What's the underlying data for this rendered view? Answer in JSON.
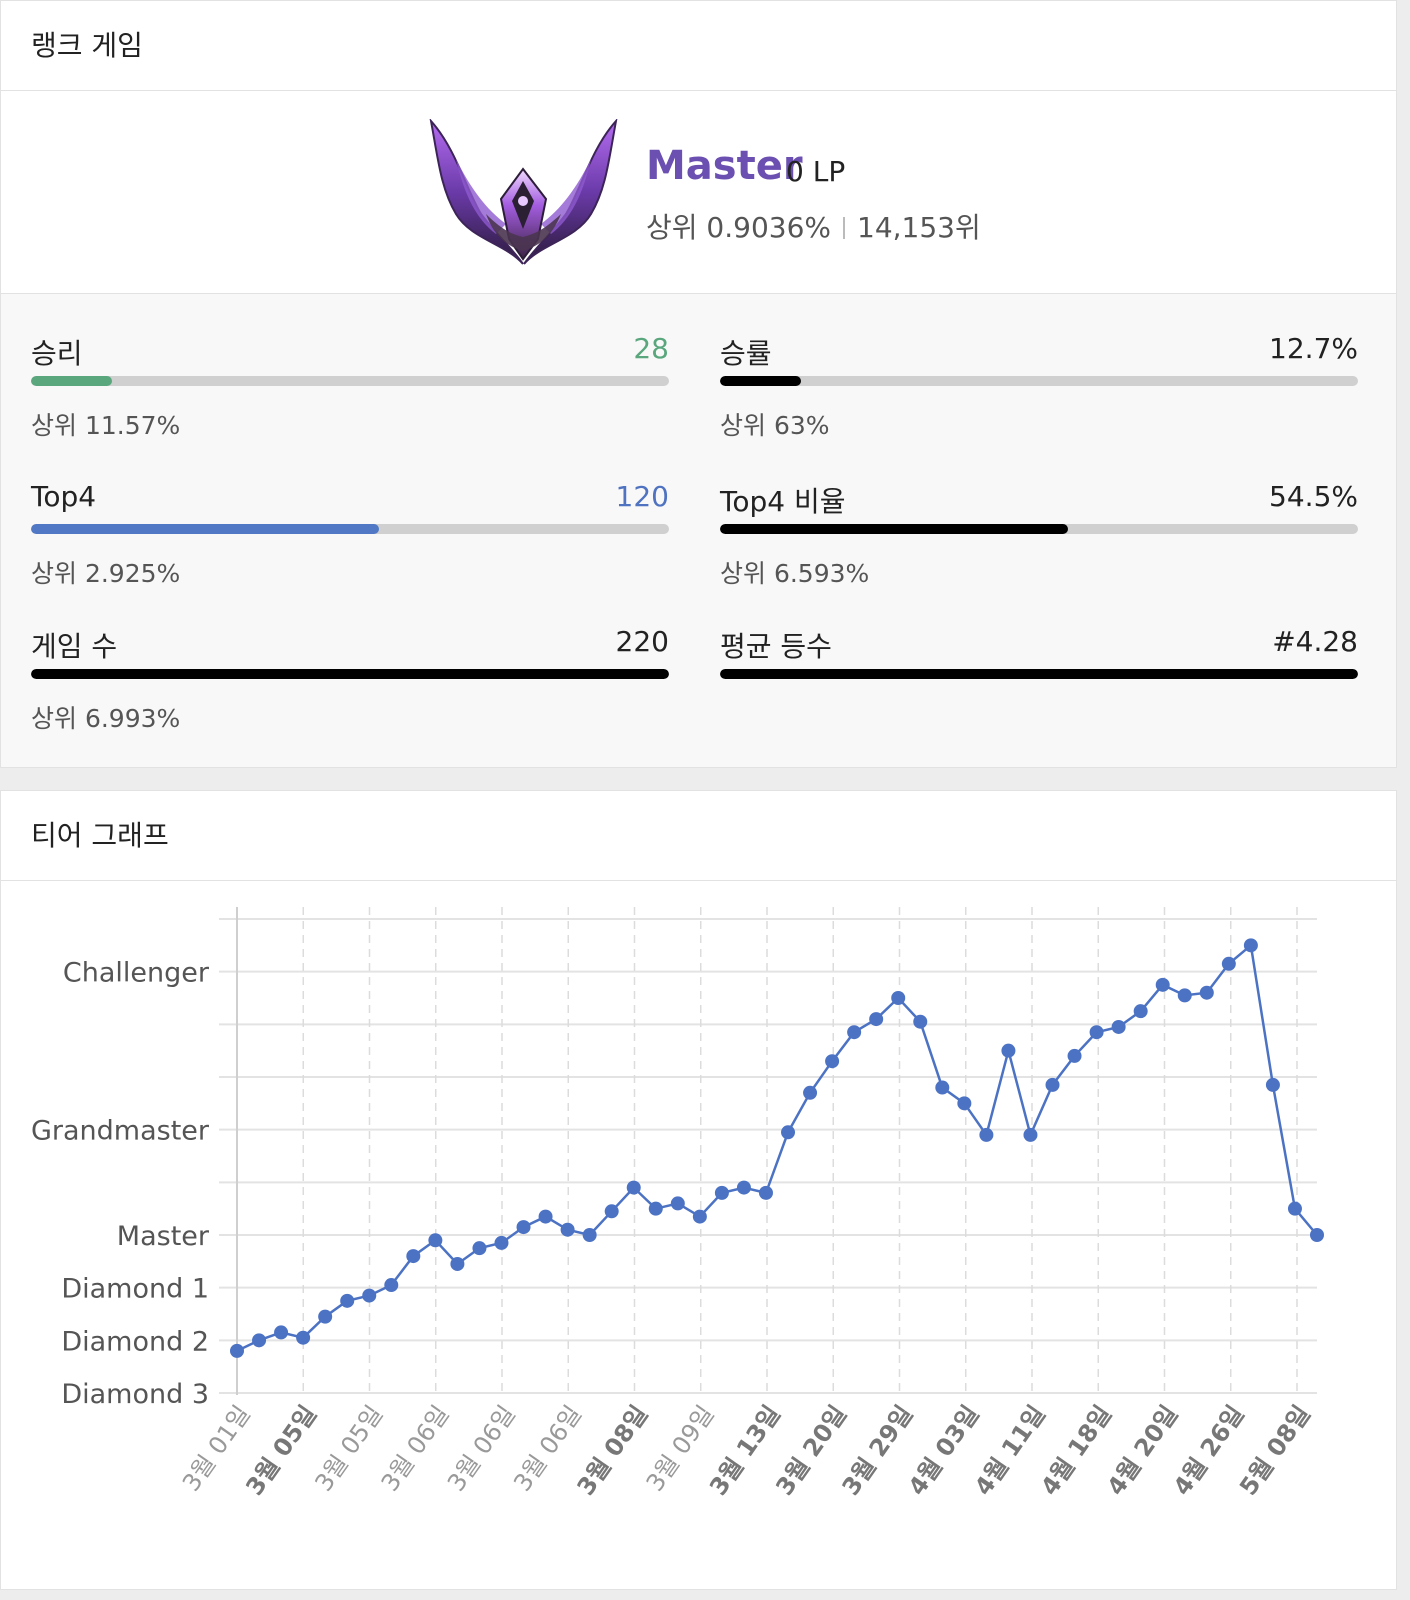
{
  "rank": {
    "header": "랭크 게임",
    "tier": "Master",
    "lp": "0 LP",
    "top_percent": "상위 0.9036%",
    "position": "14,153위"
  },
  "stats": [
    {
      "label": "승리",
      "value": "28",
      "fill_fraction": 0.127,
      "rank": "상위 11.57%",
      "color": "#5aa77e",
      "value_color": "#5aa77e"
    },
    {
      "label": "승률",
      "value": "12.7%",
      "fill_fraction": 0.127,
      "rank": "상위 63%",
      "color": "#000000",
      "value_color": "#222222"
    },
    {
      "label": "Top4",
      "value": "120",
      "fill_fraction": 0.545,
      "rank": "상위 2.925%",
      "color": "#5178c5",
      "value_color": "#4f73c0"
    },
    {
      "label": "Top4 비율",
      "value": "54.5%",
      "fill_fraction": 0.545,
      "rank": "상위 6.593%",
      "color": "#000000",
      "value_color": "#222222"
    },
    {
      "label": "게임 수",
      "value": "220",
      "fill_fraction": 1.0,
      "rank": "상위 6.993%",
      "color": "#000000",
      "value_color": "#222222"
    },
    {
      "label": "평균 등수",
      "value": "#4.28",
      "fill_fraction": 1.0,
      "rank": "",
      "color": "#000000",
      "value_color": "#222222"
    }
  ],
  "graph": {
    "header": "티어 그래프"
  },
  "chart_data": {
    "type": "line",
    "y_tick_labels": [
      "Challenger",
      "Grandmaster",
      "Master",
      "Diamond 1",
      "Diamond 2",
      "Diamond 3"
    ],
    "y_tick_values": [
      9,
      6,
      4,
      3,
      2,
      1
    ],
    "ylim": [
      1,
      10
    ],
    "x_tick_labels": [
      "3월 01일",
      "3월 05일",
      "3월 05일",
      "3월 06일",
      "3월 06일",
      "3월 06일",
      "3월 08일",
      "3월 09일",
      "3월 13일",
      "3월 20일",
      "3월 29일",
      "4월 03일",
      "4월 11일",
      "4월 18일",
      "4월 20일",
      "4월 26일",
      "5월 08일"
    ],
    "x_tick_bold": [
      false,
      true,
      false,
      false,
      false,
      false,
      true,
      false,
      true,
      true,
      true,
      true,
      true,
      true,
      true,
      true,
      true
    ],
    "grid": true,
    "line_color": "#4c72c4",
    "series": [
      {
        "values": [
          1.8,
          2.0,
          2.15,
          2.05,
          2.45,
          2.75,
          2.85,
          3.05,
          3.6,
          3.9,
          3.45,
          3.75,
          3.85,
          4.15,
          4.35,
          4.1,
          4.0,
          4.45,
          4.9,
          4.5,
          4.6,
          4.35,
          4.8,
          4.9,
          4.8,
          5.95,
          6.7,
          7.3,
          7.85,
          8.1,
          8.5,
          8.05,
          6.8,
          6.5,
          5.9,
          7.5,
          5.9,
          6.85,
          7.4,
          7.85,
          7.95,
          8.25,
          8.75,
          8.55,
          8.6,
          9.15,
          9.5,
          6.85,
          4.5,
          4.0
        ]
      }
    ]
  }
}
